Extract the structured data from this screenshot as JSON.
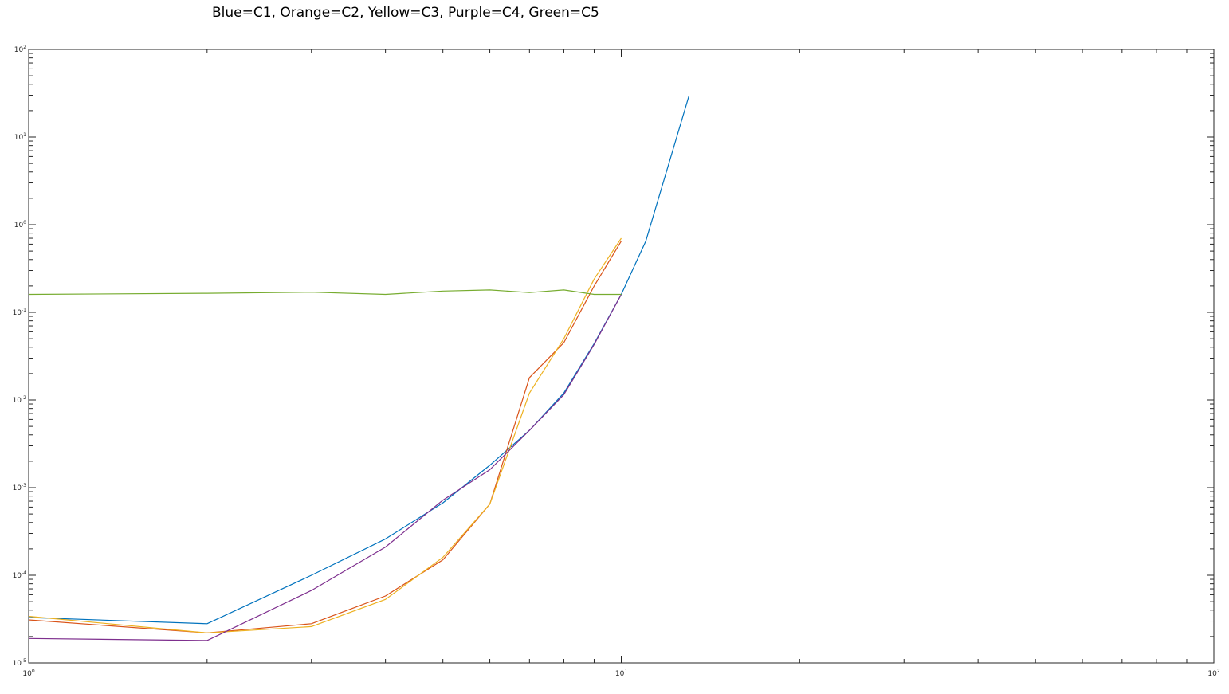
{
  "chart_data": {
    "type": "line",
    "title": "Blue=C1, Orange=C2, Yellow=C3, Purple=C4, Green=C5",
    "xlabel": "",
    "ylabel": "",
    "x_scale": "log",
    "y_scale": "log",
    "xlim": [
      1,
      100
    ],
    "ylim": [
      1e-05,
      100
    ],
    "grid": false,
    "x_ticks": [
      {
        "base": "10",
        "exp": "0"
      },
      {
        "base": "10",
        "exp": "1"
      },
      {
        "base": "10",
        "exp": "2"
      }
    ],
    "y_ticks": [
      {
        "base": "10",
        "exp": "-5",
        "value": 1e-05
      },
      {
        "base": "10",
        "exp": "-4",
        "value": 0.0001
      },
      {
        "base": "10",
        "exp": "-3",
        "value": 0.001
      },
      {
        "base": "10",
        "exp": "-2",
        "value": 0.01
      },
      {
        "base": "10",
        "exp": "-1",
        "value": 0.1
      },
      {
        "base": "10",
        "exp": "0",
        "value": 1
      },
      {
        "base": "10",
        "exp": "1",
        "value": 10
      },
      {
        "base": "10",
        "exp": "2",
        "value": 100
      }
    ],
    "series": [
      {
        "color": "#0072BD",
        "x": [
          1,
          2,
          3,
          4,
          5,
          6,
          7,
          8,
          9,
          10,
          11,
          13
        ],
        "y": [
          3.3e-05,
          2.8e-05,
          0.0001,
          0.00026,
          0.00067,
          0.0018,
          0.0045,
          0.012,
          0.044,
          0.16,
          0.65,
          29
        ]
      },
      {
        "color": "#D95319",
        "x": [
          1,
          2,
          3,
          4,
          5,
          6,
          7,
          8,
          9,
          10
        ],
        "y": [
          3.1e-05,
          2.2e-05,
          2.8e-05,
          5.8e-05,
          0.00015,
          0.00065,
          0.018,
          0.045,
          0.2,
          0.65
        ]
      },
      {
        "color": "#EDB120",
        "x": [
          1,
          2,
          3,
          4,
          5,
          6,
          7,
          8,
          9,
          10
        ],
        "y": [
          3.4e-05,
          2.2e-05,
          2.6e-05,
          5.3e-05,
          0.00016,
          0.00065,
          0.012,
          0.05,
          0.24,
          0.7
        ]
      },
      {
        "color": "#7E2F8E",
        "x": [
          1,
          2,
          3,
          4,
          5,
          6,
          7,
          8,
          9,
          10
        ],
        "y": [
          1.9e-05,
          1.8e-05,
          6.7e-05,
          0.00021,
          0.00072,
          0.0016,
          0.0045,
          0.0115,
          0.043,
          0.16
        ]
      },
      {
        "color": "#77AC30",
        "x": [
          1,
          2,
          3,
          4,
          5,
          6,
          7,
          8,
          9,
          10
        ],
        "y": [
          0.16,
          0.165,
          0.17,
          0.16,
          0.175,
          0.18,
          0.168,
          0.18,
          0.16,
          0.16
        ]
      }
    ]
  }
}
